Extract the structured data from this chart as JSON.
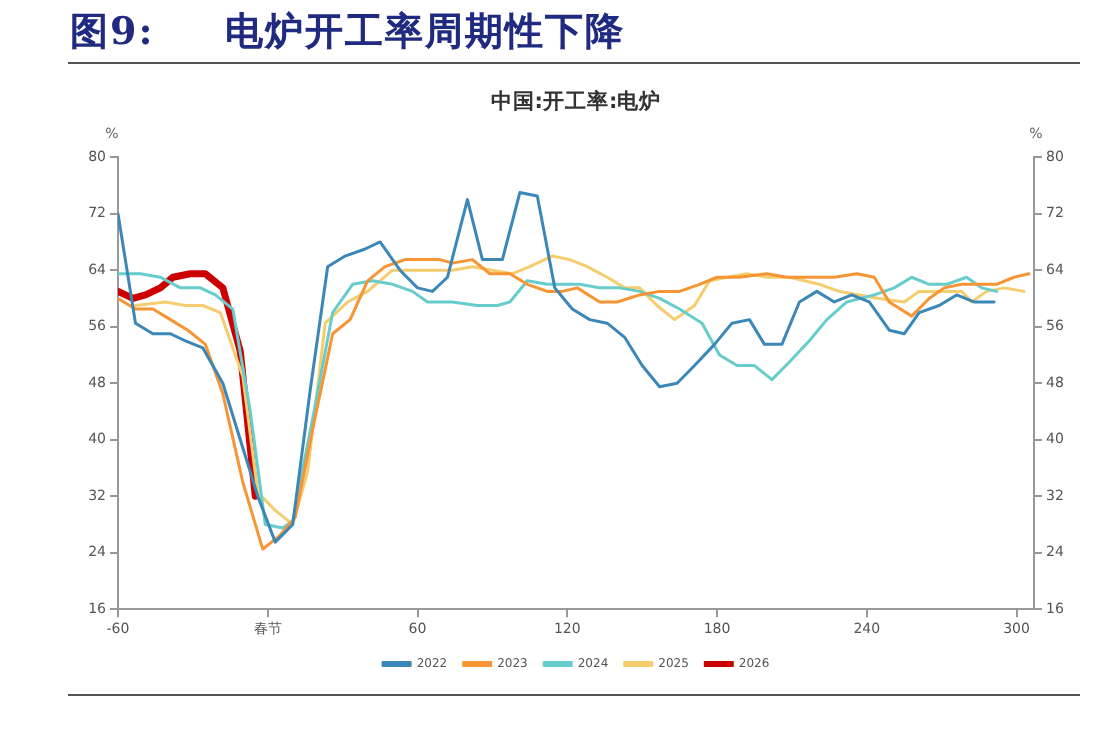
{
  "chart_data": {
    "type": "line",
    "title": "图9:  电炉开工率周期性下降",
    "subtitle": "中国:开工率:电炉",
    "ylabel": "%",
    "y2label": "%",
    "xlim": [
      -60,
      307
    ],
    "xticks": [
      -60,
      {
        "value": 0,
        "label": "春节"
      },
      60,
      120,
      180,
      240,
      300
    ],
    "ylim": [
      16,
      80
    ],
    "yticks": [
      16,
      24,
      32,
      40,
      48,
      56,
      64,
      72,
      80
    ],
    "y2lim": [
      16,
      80
    ],
    "y2ticks": [
      16,
      24,
      32,
      40,
      48,
      56,
      64,
      72,
      80
    ],
    "grid": false,
    "legend": "bottom",
    "marker": "none",
    "line_style": "solid",
    "series": [
      {
        "name": "2022",
        "color": "#3b87b8",
        "x": [
          -60,
          -53,
          -46,
          -39,
          -33,
          -26,
          -18,
          -11,
          -4,
          3,
          10,
          17,
          24,
          31,
          39,
          45,
          53,
          60,
          66,
          72,
          80,
          86,
          94,
          101,
          108,
          115,
          122,
          129,
          136,
          143,
          150,
          157,
          164,
          171,
          179,
          186,
          193,
          199,
          206,
          213,
          220,
          227,
          234,
          241,
          249,
          255,
          261,
          269,
          276,
          283,
          291
        ],
        "values": [
          72,
          56.5,
          55,
          55,
          54,
          53,
          48,
          40,
          32,
          25.5,
          28,
          47,
          64.5,
          66,
          67,
          68,
          64,
          61.5,
          61,
          63,
          74,
          65.5,
          65.5,
          75,
          74.5,
          61.5,
          58.5,
          57,
          56.5,
          54.5,
          50.5,
          47.5,
          48,
          50.5,
          53.5,
          56.5,
          57,
          53.5,
          53.5,
          59.5,
          61,
          59.5,
          60.5,
          59.5,
          55.5,
          55,
          58,
          59,
          60.5,
          59.5,
          59.5
        ]
      },
      {
        "name": "2023",
        "color": "#f79433",
        "x": [
          -60,
          -53,
          -46,
          -39,
          -32,
          -25,
          -18,
          -10,
          -2,
          5,
          11,
          18,
          26,
          33,
          40,
          47,
          55,
          62,
          69,
          74,
          82,
          89,
          97,
          104,
          112,
          118,
          124,
          133,
          140,
          149,
          157,
          165,
          173,
          180,
          189,
          200,
          208,
          216,
          227,
          236,
          243,
          249,
          258,
          265,
          271,
          278,
          286,
          292,
          299,
          305
        ],
        "values": [
          60,
          58.5,
          58.5,
          57,
          55.5,
          53.5,
          46.5,
          34,
          24.5,
          26.5,
          29,
          41.5,
          55,
          57,
          62.5,
          64.5,
          65.5,
          65.5,
          65.5,
          65,
          65.5,
          63.5,
          63.5,
          62,
          61,
          61,
          61.5,
          59.5,
          59.5,
          60.5,
          61,
          61,
          62,
          63,
          63,
          63.5,
          63,
          63,
          63,
          63.5,
          63,
          59.5,
          57.5,
          60,
          61.5,
          62,
          62,
          62,
          63,
          63.5
        ]
      },
      {
        "name": "2024",
        "color": "#66cccc",
        "x": [
          -60,
          -51,
          -43,
          -35,
          -27,
          -21,
          -14,
          -7,
          -1,
          6,
          10,
          18,
          26,
          34,
          42,
          50,
          58,
          64,
          74,
          84,
          92,
          97,
          104,
          112,
          117,
          125,
          133,
          141,
          149,
          157,
          165,
          174,
          181,
          188,
          195,
          202,
          209,
          217,
          224,
          232,
          243,
          251,
          258,
          265,
          272,
          280,
          286,
          292
        ],
        "values": [
          63.5,
          63.5,
          63,
          61.5,
          61.5,
          60.5,
          58.5,
          44,
          28,
          27.5,
          28.5,
          43,
          58,
          62,
          62.5,
          62,
          61,
          59.5,
          59.5,
          59,
          59,
          59.5,
          62.5,
          62,
          62,
          62,
          61.5,
          61.5,
          61,
          60,
          58.5,
          56.5,
          52,
          50.5,
          50.5,
          48.5,
          51,
          54,
          57,
          59.5,
          60.5,
          61.5,
          63,
          62,
          62,
          63,
          61.5,
          61
        ]
      },
      {
        "name": "2025",
        "color": "#f5cd6e",
        "x": [
          -53,
          -41,
          -33,
          -26,
          -19,
          -10,
          -4,
          3,
          10,
          16,
          23,
          32,
          40,
          50,
          61,
          74,
          82,
          90,
          98,
          105,
          114,
          121,
          128,
          136,
          143,
          149,
          156,
          163,
          171,
          177,
          184,
          192,
          200,
          209,
          221,
          229,
          237,
          245,
          255,
          261,
          271,
          278,
          282,
          288,
          295,
          303
        ],
        "values": [
          59,
          59.5,
          59,
          59,
          58,
          49,
          32.5,
          30,
          28,
          35.5,
          56.5,
          59.5,
          61,
          64,
          64,
          64,
          64.5,
          64,
          63.5,
          64.5,
          66,
          65.5,
          64.5,
          63,
          61.5,
          61.5,
          59,
          57,
          59,
          62.5,
          63,
          63.5,
          63,
          63,
          62,
          61,
          60.5,
          60,
          59.5,
          61,
          61,
          61,
          59.5,
          61,
          61.5,
          61
        ]
      },
      {
        "name": "2026",
        "color": "#cc0000",
        "x": [
          -60,
          -54,
          -49,
          -43,
          -38,
          -31,
          -25,
          -18,
          -11,
          -5
        ],
        "values": [
          61,
          60,
          60.5,
          61.5,
          63,
          63.5,
          63.5,
          61.5,
          52.5,
          32
        ]
      }
    ]
  }
}
